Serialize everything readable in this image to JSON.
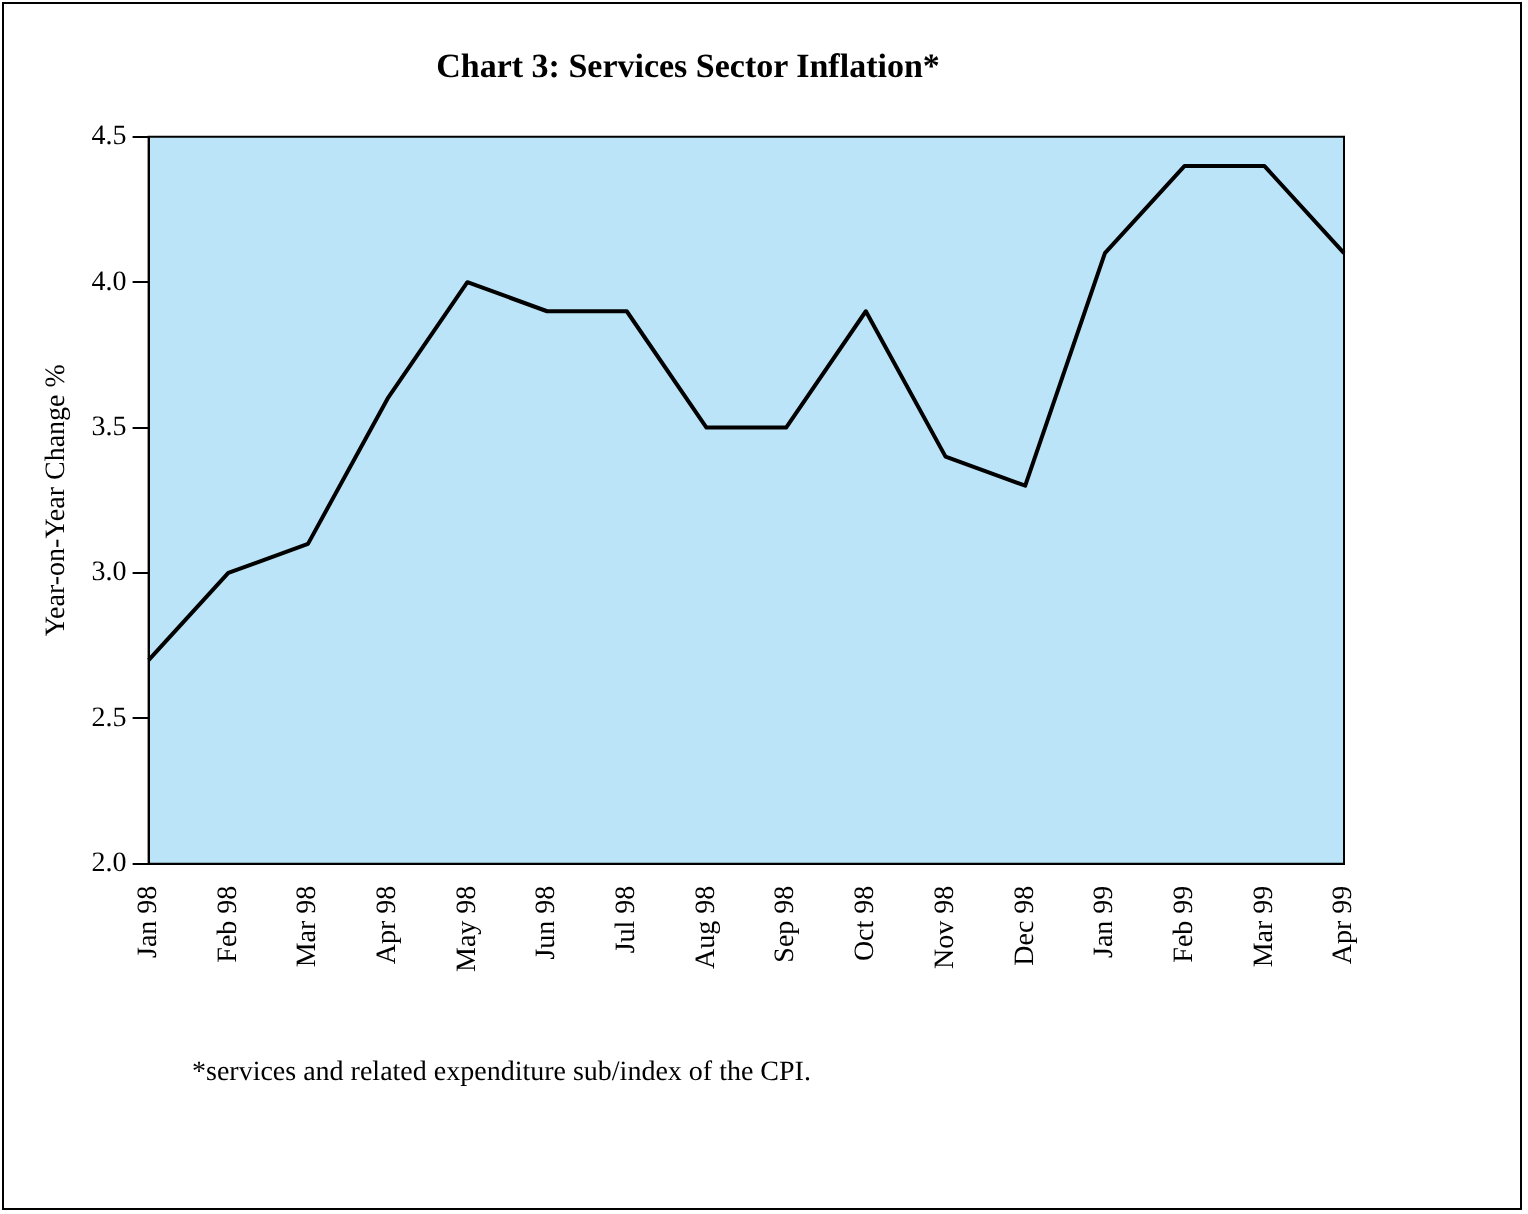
{
  "chart_data": {
    "type": "line",
    "title": "Chart 3: Services Sector Inflation*",
    "ylabel": "Year-on-Year Change %",
    "categories": [
      "Jan 98",
      "Feb 98",
      "Mar 98",
      "Apr 98",
      "May 98",
      "Jun 98",
      "Jul 98",
      "Aug 98",
      "Sep 98",
      "Oct 98",
      "Nov 98",
      "Dec 98",
      "Jan 99",
      "Feb 99",
      "Mar 99",
      "Apr 99"
    ],
    "series": [
      {
        "color": "#000000",
        "values": [
          2.7,
          3.0,
          3.1,
          3.6,
          4.0,
          3.9,
          3.9,
          3.5,
          3.5,
          3.9,
          3.4,
          3.3,
          4.1,
          4.4,
          4.4,
          4.1
        ]
      }
    ],
    "ylim": [
      2.0,
      4.5
    ],
    "yticks": [
      {
        "value": 2.0,
        "label": "2.0"
      },
      {
        "value": 2.5,
        "label": "2.5"
      },
      {
        "value": 3.0,
        "label": "3.0"
      },
      {
        "value": 3.5,
        "label": "3.5"
      },
      {
        "value": 4.0,
        "label": "4.0"
      },
      {
        "value": 4.5,
        "label": "4.5"
      }
    ],
    "grid": false,
    "legend": false,
    "marker": "none",
    "line_style": "solid",
    "annotations": [
      "*services and related expenditure sub/index of the CPI."
    ]
  }
}
